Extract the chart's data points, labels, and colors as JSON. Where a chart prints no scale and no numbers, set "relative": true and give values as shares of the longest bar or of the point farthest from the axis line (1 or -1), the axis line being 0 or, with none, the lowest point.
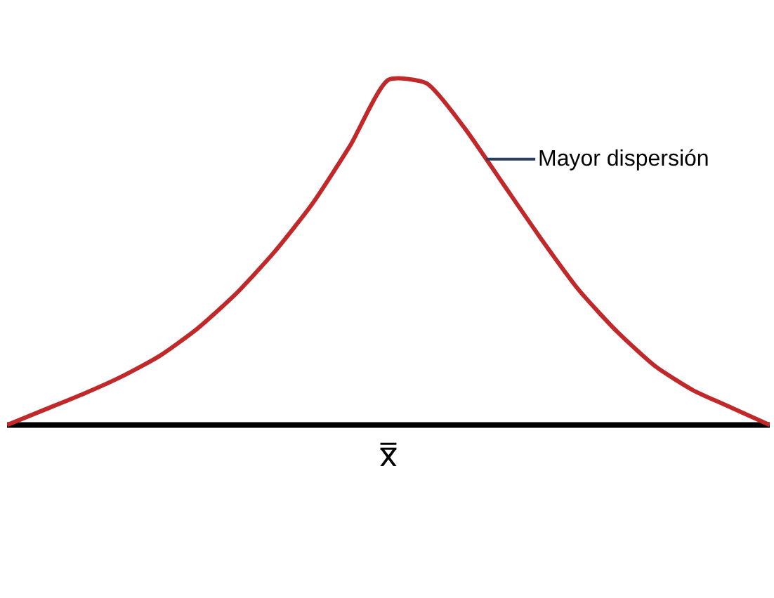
{
  "chart_data": {
    "type": "line",
    "relative": true,
    "categories": [
      null,
      null,
      null,
      null,
      null,
      null,
      null,
      null,
      null,
      null,
      null,
      null,
      null,
      null,
      null,
      null,
      null,
      null,
      null,
      null,
      null
    ],
    "series": [
      {
        "color": "#c0282a",
        "values": [
          0.0,
          0.045,
          0.09,
          0.14,
          0.2,
          0.28,
          0.38,
          0.5,
          0.64,
          0.81,
          1.0,
          0.99,
          0.86,
          0.7,
          0.54,
          0.39,
          0.27,
          0.17,
          0.1,
          0.05,
          0.0
        ]
      }
    ],
    "annotations": [
      "Mayor dispersión",
      "x̿"
    ],
    "marker": "none"
  }
}
